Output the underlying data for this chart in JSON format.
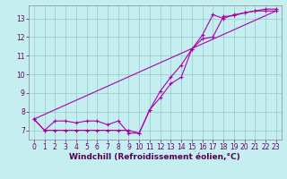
{
  "title": "",
  "xlabel": "Windchill (Refroidissement éolien,°C)",
  "ylabel": "",
  "bg_color": "#c4eef0",
  "grid_color": "#9ecdd0",
  "line_color": "#aa00aa",
  "xlim": [
    -0.5,
    23.5
  ],
  "ylim": [
    6.5,
    13.7
  ],
  "xticks": [
    0,
    1,
    2,
    3,
    4,
    5,
    6,
    7,
    8,
    9,
    10,
    11,
    12,
    13,
    14,
    15,
    16,
    17,
    18,
    19,
    20,
    21,
    22,
    23
  ],
  "yticks": [
    7,
    8,
    9,
    10,
    11,
    12,
    13
  ],
  "line1_x": [
    0,
    1,
    2,
    3,
    4,
    5,
    6,
    7,
    8,
    9,
    10,
    11,
    12,
    13,
    14,
    15,
    16,
    17,
    18,
    19,
    20,
    21,
    22,
    23
  ],
  "line1_y": [
    7.6,
    7.0,
    7.5,
    7.5,
    7.4,
    7.5,
    7.5,
    7.3,
    7.5,
    6.85,
    6.85,
    8.1,
    8.75,
    9.5,
    9.85,
    11.35,
    11.9,
    12.0,
    13.1,
    13.15,
    13.3,
    13.4,
    13.5,
    13.5
  ],
  "line2_x": [
    0,
    1,
    2,
    3,
    4,
    5,
    6,
    7,
    8,
    9,
    10,
    11,
    12,
    13,
    14,
    15,
    16,
    17,
    18,
    19,
    20,
    21,
    22,
    23
  ],
  "line2_y": [
    7.6,
    7.0,
    7.0,
    7.0,
    7.0,
    7.0,
    7.0,
    7.0,
    7.0,
    7.0,
    6.85,
    8.1,
    9.1,
    9.85,
    10.5,
    11.35,
    12.1,
    13.2,
    13.0,
    13.2,
    13.3,
    13.4,
    13.4,
    13.4
  ],
  "line3_x": [
    0,
    23
  ],
  "line3_y": [
    7.6,
    13.4
  ],
  "marker": "+",
  "markersize": 3.5,
  "linewidth": 0.8,
  "tick_fontsize": 5.5,
  "xlabel_fontsize": 6.5
}
